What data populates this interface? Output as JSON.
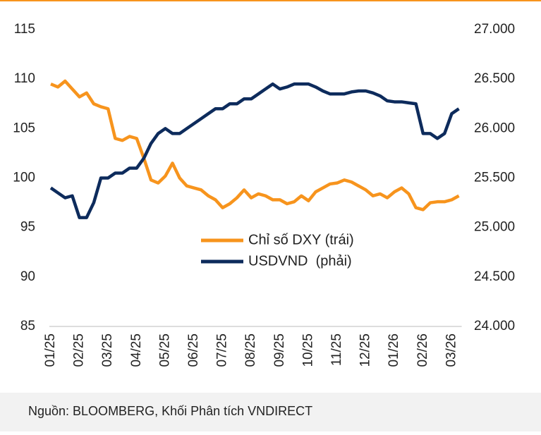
{
  "chart_data": {
    "type": "line",
    "categories": [
      "01/25",
      null,
      null,
      null,
      "02/25",
      null,
      null,
      null,
      "03/25",
      null,
      null,
      null,
      "04/25",
      null,
      null,
      null,
      "05/25",
      null,
      null,
      null,
      "06/25",
      null,
      null,
      null,
      "07/25",
      null,
      null,
      null,
      "08/25",
      null,
      null,
      null,
      "09/25",
      null,
      null,
      null,
      "10/25",
      null,
      null,
      null,
      "11/25",
      null,
      null,
      null,
      "12/25",
      null,
      null,
      null,
      "01/26",
      null,
      null,
      null,
      "02/26",
      null,
      null,
      null,
      "03/26",
      null
    ],
    "series": [
      {
        "name": "Chỉ số DXY (trái)",
        "color": "#f7941d",
        "values": [
          109.5,
          109.2,
          109.8,
          109.0,
          108.2,
          108.6,
          107.5,
          107.2,
          107.0,
          104.0,
          103.8,
          104.2,
          104.0,
          102.0,
          99.8,
          99.5,
          100.2,
          101.5,
          100.0,
          99.2,
          99.0,
          98.8,
          98.2,
          97.8,
          97.0,
          97.4,
          98.0,
          98.8,
          98.0,
          98.4,
          98.2,
          97.8,
          97.8,
          97.4,
          97.6,
          98.2,
          97.7,
          98.6,
          99.0,
          99.4,
          99.5,
          99.8,
          99.6,
          99.2,
          98.8,
          98.2,
          98.4,
          98.0,
          98.6,
          99.0,
          98.4,
          97.0,
          96.8,
          97.5,
          97.6,
          97.6,
          97.8,
          98.2
        ]
      },
      {
        "name": "USDVND  (phải)",
        "color": "#0d2b5c",
        "axis": "y2",
        "values": [
          25400,
          25350,
          25300,
          25320,
          25100,
          25100,
          25250,
          25500,
          25500,
          25550,
          25550,
          25600,
          25600,
          25700,
          25850,
          25950,
          26000,
          25950,
          25950,
          26000,
          26050,
          26100,
          26150,
          26200,
          26200,
          26250,
          26250,
          26300,
          26300,
          26350,
          26400,
          26450,
          26400,
          26420,
          26450,
          26450,
          26450,
          26420,
          26380,
          26350,
          26350,
          26350,
          26370,
          26380,
          26380,
          26360,
          26330,
          26280,
          26270,
          26270,
          26260,
          26250,
          25950,
          25950,
          25900,
          25950,
          26150,
          26200
        ]
      }
    ],
    "ylim": [
      85,
      115
    ],
    "yticks": [
      85,
      90,
      95,
      100,
      105,
      110,
      115
    ],
    "y2lim": [
      24000,
      27000
    ],
    "y2ticks": [
      {
        "value": 24000,
        "label": "24.000"
      },
      {
        "value": 24500,
        "label": "24.500"
      },
      {
        "value": 25000,
        "label": "25.000"
      },
      {
        "value": 25500,
        "label": "25.500"
      },
      {
        "value": 26000,
        "label": "26.000"
      },
      {
        "value": 26500,
        "label": "26.500"
      },
      {
        "value": 27000,
        "label": "27.000"
      }
    ],
    "source": "Nguồn: BLOOMBERG, Khối Phân tích VNDIRECT"
  }
}
